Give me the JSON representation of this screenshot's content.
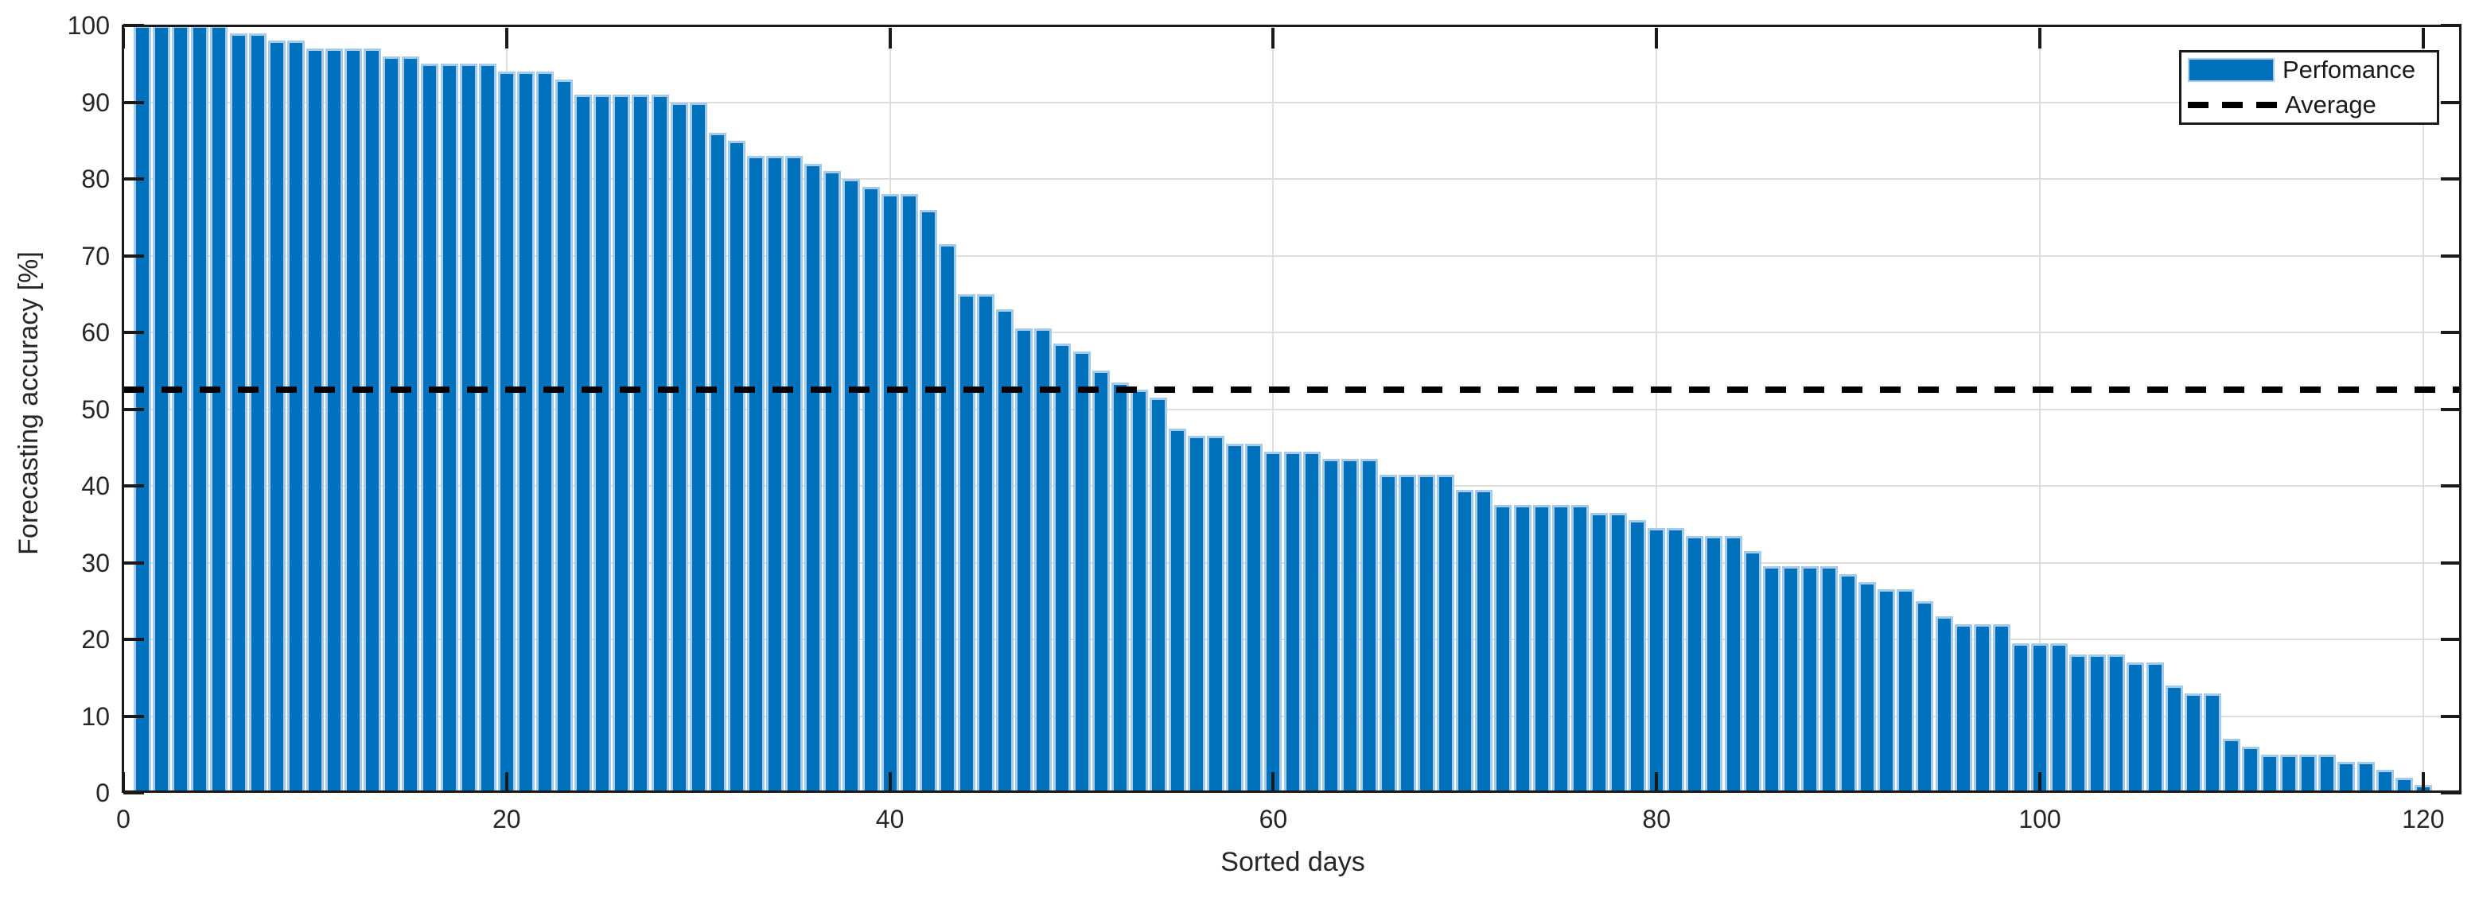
{
  "chart_data": {
    "type": "bar",
    "title": "",
    "xlabel": "Sorted days",
    "ylabel": "Forecasting accuracy [%]",
    "series_name": "Perfomance",
    "x_range": [
      1,
      120
    ],
    "values": [
      100,
      100,
      100,
      100,
      100,
      99,
      99,
      98,
      98,
      97,
      97,
      97,
      97,
      96,
      96,
      95,
      95,
      95,
      95,
      94,
      94,
      94,
      93,
      91,
      91,
      91,
      91,
      91,
      90,
      90,
      86,
      85,
      83,
      83,
      83,
      82,
      81,
      80,
      79,
      78,
      78,
      76,
      71.5,
      65,
      65,
      63,
      60.5,
      60.5,
      58.5,
      57.5,
      55,
      53.5,
      52.5,
      51.5,
      47.5,
      46.5,
      46.5,
      45.5,
      45.5,
      44.5,
      44.5,
      44.5,
      43.5,
      43.5,
      43.5,
      41.5,
      41.5,
      41.5,
      41.5,
      39.5,
      39.5,
      37.5,
      37.5,
      37.5,
      37.5,
      37.5,
      36.5,
      36.5,
      35.5,
      34.5,
      34.5,
      33.5,
      33.5,
      33.5,
      31.5,
      29.5,
      29.5,
      29.5,
      29.5,
      28.5,
      27.5,
      26.5,
      26.5,
      25,
      23,
      22,
      22,
      22,
      19.5,
      19.5,
      19.5,
      18,
      18,
      18,
      17,
      17,
      14,
      13,
      13,
      7,
      6,
      5,
      5,
      5,
      5,
      4,
      4,
      3,
      2,
      1
    ],
    "average_line": {
      "label": "Average",
      "value": 52.5,
      "style": "dashed",
      "color": "#000000"
    },
    "xlim": [
      0,
      122
    ],
    "ylim": [
      0,
      100
    ],
    "xticks": [
      0,
      20,
      40,
      60,
      80,
      100,
      120
    ],
    "yticks": [
      0,
      10,
      20,
      30,
      40,
      50,
      60,
      70,
      80,
      90,
      100
    ],
    "grid": true,
    "legend": {
      "position": "top-right",
      "entries": [
        {
          "label": "Perfomance",
          "marker": "bar-swatch"
        },
        {
          "label": "Average",
          "marker": "dashed-line"
        }
      ]
    },
    "colors": {
      "bar_fill": "#0072BD",
      "bar_edge": "#A6CBE8",
      "grid": "#DEDEDE",
      "axis": "#1A1A1A",
      "tick_label": "#262626",
      "average_line": "#000000",
      "background": "#FFFFFF"
    }
  }
}
